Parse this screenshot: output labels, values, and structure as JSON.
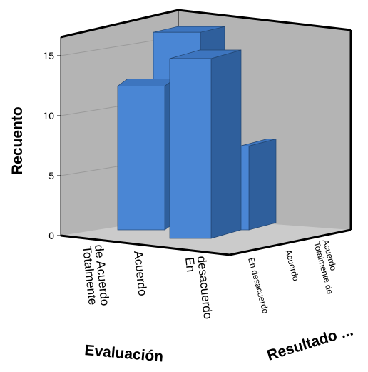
{
  "chart_data": {
    "type": "bar",
    "subtype": "3d-bar",
    "ylabel": "Recuento",
    "xlabel": "Evaluación",
    "zlabel": "Resultado ...",
    "yticks": [
      "0",
      "5",
      "10",
      "15"
    ],
    "ylim": [
      0,
      16
    ],
    "x_categories": [
      [
        "Totalmente",
        "de Acuerdo"
      ],
      [
        "Acuerdo"
      ],
      [
        "En",
        "desacuerdo"
      ]
    ],
    "z_categories": [
      [
        "En desacuerdo"
      ],
      [
        "Acuerdo"
      ],
      [
        "Totalmente de",
        "Acuerdo"
      ]
    ],
    "bars": [
      {
        "evaluacion": "Totalmente de Acuerdo",
        "resultado": "En desacuerdo",
        "value": 12
      },
      {
        "evaluacion": "Acuerdo",
        "resultado": "Acuerdo",
        "value": 16
      },
      {
        "evaluacion": "En desacuerdo",
        "resultado": "En desacuerdo",
        "value": 15
      },
      {
        "evaluacion": "En desacuerdo",
        "resultado": "Acuerdo",
        "value": 7
      }
    ],
    "colors": {
      "bar_front": "#4a86d4",
      "bar_side": "#2f5f9c",
      "bar_top": "#3d75bf",
      "wall": "#b3b3b3",
      "floor": "#c9c9c9"
    }
  }
}
